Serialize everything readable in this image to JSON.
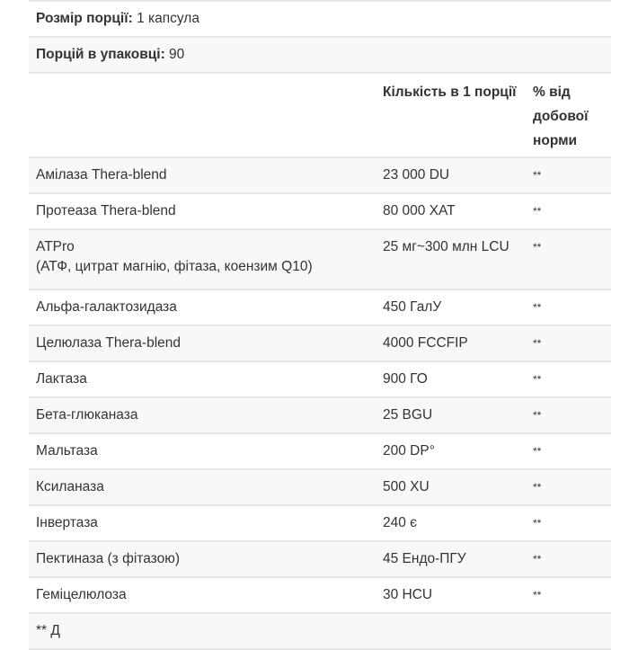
{
  "serving_size": {
    "label": "Розмір порції:",
    "value": "1 капсула"
  },
  "servings_per_container": {
    "label": "Порцій в упаковці:",
    "value": "90"
  },
  "header": {
    "amount": "Кількість в 1 порції",
    "dv": "% від добової норми"
  },
  "rows": [
    {
      "name": "Амілаза Thera-blend",
      "amount": "23 000 DU",
      "dv": "**"
    },
    {
      "name": "Протеаза Thera-blend",
      "amount": "80 000 ХАТ",
      "dv": "**"
    },
    {
      "name": "ATPro",
      "sub": "(АТФ, цитрат магнію, фітаза, коензим Q10)",
      "amount": "25 мг~300 млн LCU",
      "dv": "**"
    },
    {
      "name": "Альфа-галактозидаза",
      "amount": "450 ГалУ",
      "dv": "**"
    },
    {
      "name": "Целюлаза Thera-blend",
      "amount": "4000 FCCFIP",
      "dv": "**"
    },
    {
      "name": "Лактаза",
      "amount": "900 ГО",
      "dv": "**"
    },
    {
      "name": "Бета-глюканаза",
      "amount": "25 BGU",
      "dv": "**"
    },
    {
      "name": "Мальтаза",
      "amount": "200 DP°",
      "dv": "**"
    },
    {
      "name": "Ксиланаза",
      "amount": "500 XU",
      "dv": "**"
    },
    {
      "name": "Інвертаза",
      "amount": "240 є",
      "dv": "**"
    },
    {
      "name": "Пектиназа (з фітазою)",
      "amount": "45 Ендо-ПГУ",
      "dv": "**"
    },
    {
      "name": "Геміцелюлоза",
      "amount": "30 HCU",
      "dv": "**"
    }
  ],
  "footnote": "** Д"
}
